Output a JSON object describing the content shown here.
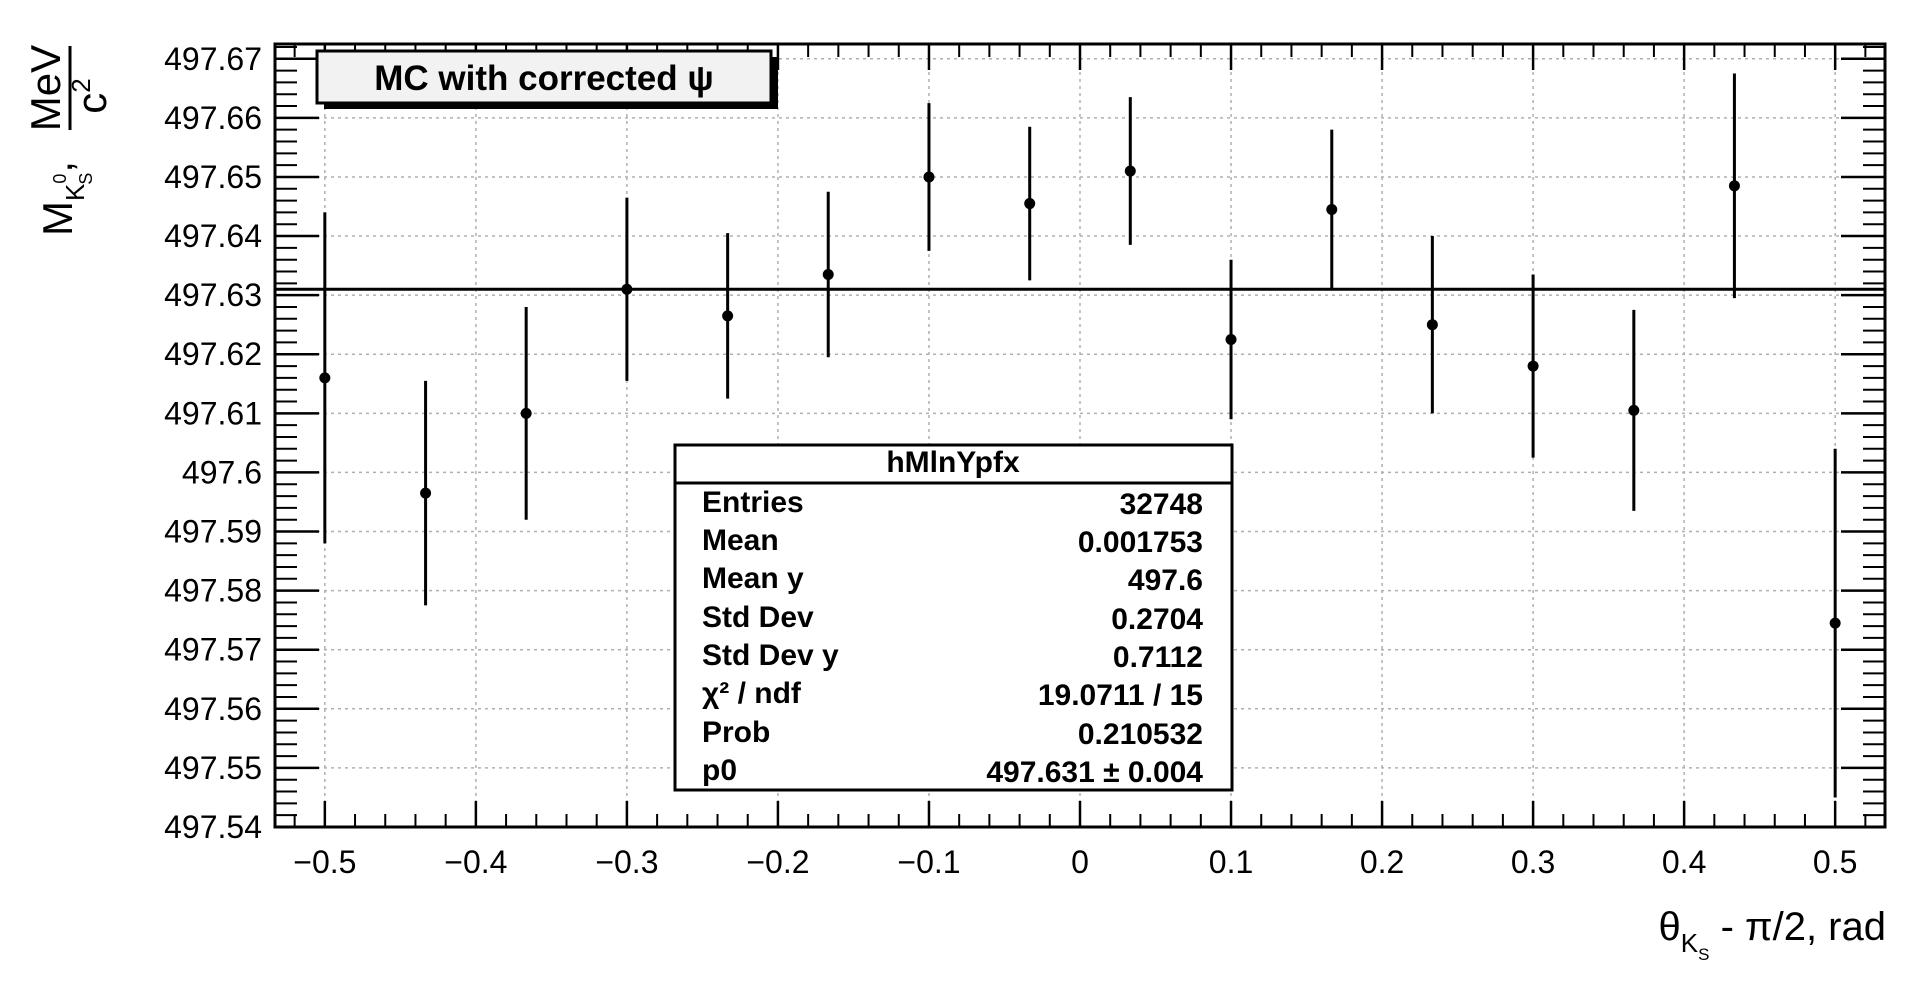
{
  "chart_data": {
    "type": "scatter",
    "title": "MC with corrected ψ",
    "xlabel": {
      "theta": "θ",
      "sub_k": "K",
      "sub_s": "S",
      "rest": " - π/2, rad"
    },
    "ylabel": {
      "m": "M",
      "sub_k": "K",
      "sub_sup": "0",
      "sub_sub": "S",
      "comma": ",",
      "num": "MeV",
      "den": "c",
      "den_sup": "2"
    },
    "xlim": [
      -0.533,
      0.533
    ],
    "ylim": [
      497.54,
      497.6725
    ],
    "x_ticks": [
      "−0.5",
      "−0.4",
      "−0.3",
      "−0.2",
      "−0.1",
      "0",
      "0.1",
      "0.2",
      "0.3",
      "0.4",
      "0.5"
    ],
    "x_tick_values": [
      -0.5,
      -0.4,
      -0.3,
      -0.2,
      -0.1,
      0,
      0.1,
      0.2,
      0.3,
      0.4,
      0.5
    ],
    "y_ticks": [
      "497.54",
      "497.55",
      "497.56",
      "497.57",
      "497.58",
      "497.59",
      "497.6",
      "497.61",
      "497.62",
      "497.63",
      "497.64",
      "497.65",
      "497.66",
      "497.67"
    ],
    "y_tick_values": [
      497.54,
      497.55,
      497.56,
      497.57,
      497.58,
      497.59,
      497.6,
      497.61,
      497.62,
      497.63,
      497.64,
      497.65,
      497.66,
      497.67
    ],
    "grid": true,
    "points": [
      {
        "x": -0.5,
        "y": 497.616,
        "err": 0.028
      },
      {
        "x": -0.4333,
        "y": 497.5965,
        "err": 0.019
      },
      {
        "x": -0.3667,
        "y": 497.61,
        "err": 0.018
      },
      {
        "x": -0.3,
        "y": 497.631,
        "err": 0.0155
      },
      {
        "x": -0.2333,
        "y": 497.6265,
        "err": 0.014
      },
      {
        "x": -0.1667,
        "y": 497.6335,
        "err": 0.014
      },
      {
        "x": -0.1,
        "y": 497.65,
        "err": 0.0125
      },
      {
        "x": -0.0333,
        "y": 497.6455,
        "err": 0.013
      },
      {
        "x": 0.0333,
        "y": 497.651,
        "err": 0.0125
      },
      {
        "x": 0.1,
        "y": 497.6225,
        "err": 0.0135
      },
      {
        "x": 0.1667,
        "y": 497.6445,
        "err": 0.0135
      },
      {
        "x": 0.2333,
        "y": 497.625,
        "err": 0.015
      },
      {
        "x": 0.3,
        "y": 497.618,
        "err": 0.0155
      },
      {
        "x": 0.3667,
        "y": 497.6105,
        "err": 0.017
      },
      {
        "x": 0.4333,
        "y": 497.6485,
        "err": 0.019
      },
      {
        "x": 0.5,
        "y": 497.5745,
        "err": 0.0295
      }
    ],
    "fit": {
      "p0": 497.631
    },
    "stats": {
      "title": "hMlnYpfx",
      "rows": [
        {
          "label": "Entries",
          "value": "32748"
        },
        {
          "label": "Mean",
          "value": "0.001753"
        },
        {
          "label": "Mean y",
          "value": "497.6"
        },
        {
          "label": "Std Dev",
          "value": "0.2704"
        },
        {
          "label": "Std Dev y",
          "value": "0.7112"
        },
        {
          "label": "χ² / ndf",
          "value": "19.0711 / 15"
        },
        {
          "label": "Prob",
          "value": "0.210532"
        },
        {
          "label": "p0",
          "value": "497.631 ± 0.004"
        }
      ]
    },
    "colors": {
      "marker": "#000000",
      "fit_line": "#000000",
      "grid": "#b0b0b0",
      "box_fill": "#f2f2f2"
    }
  }
}
